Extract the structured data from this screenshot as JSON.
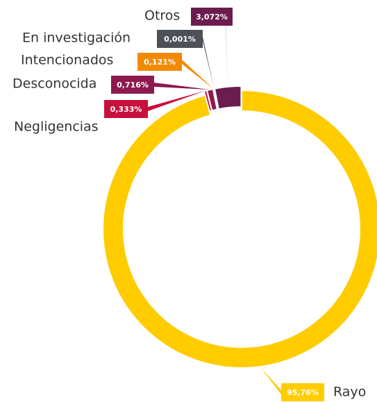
{
  "chart_data": {
    "type": "donut",
    "categories": [
      "Rayo",
      "Negligencias",
      "Desconocida",
      "Intencionados",
      "En investigación",
      "Otros"
    ],
    "values": [
      95.76,
      0.333,
      0.716,
      0.121,
      0.001,
      3.072
    ],
    "value_labels": [
      "95,76%",
      "0,333%",
      "0,716%",
      "0,121%",
      "0,001%",
      "3,072%"
    ],
    "colors": [
      "#ffcc00",
      "#c8103c",
      "#8c1a4e",
      "#f28a00",
      "#4b5157",
      "#6a1d4e"
    ]
  }
}
